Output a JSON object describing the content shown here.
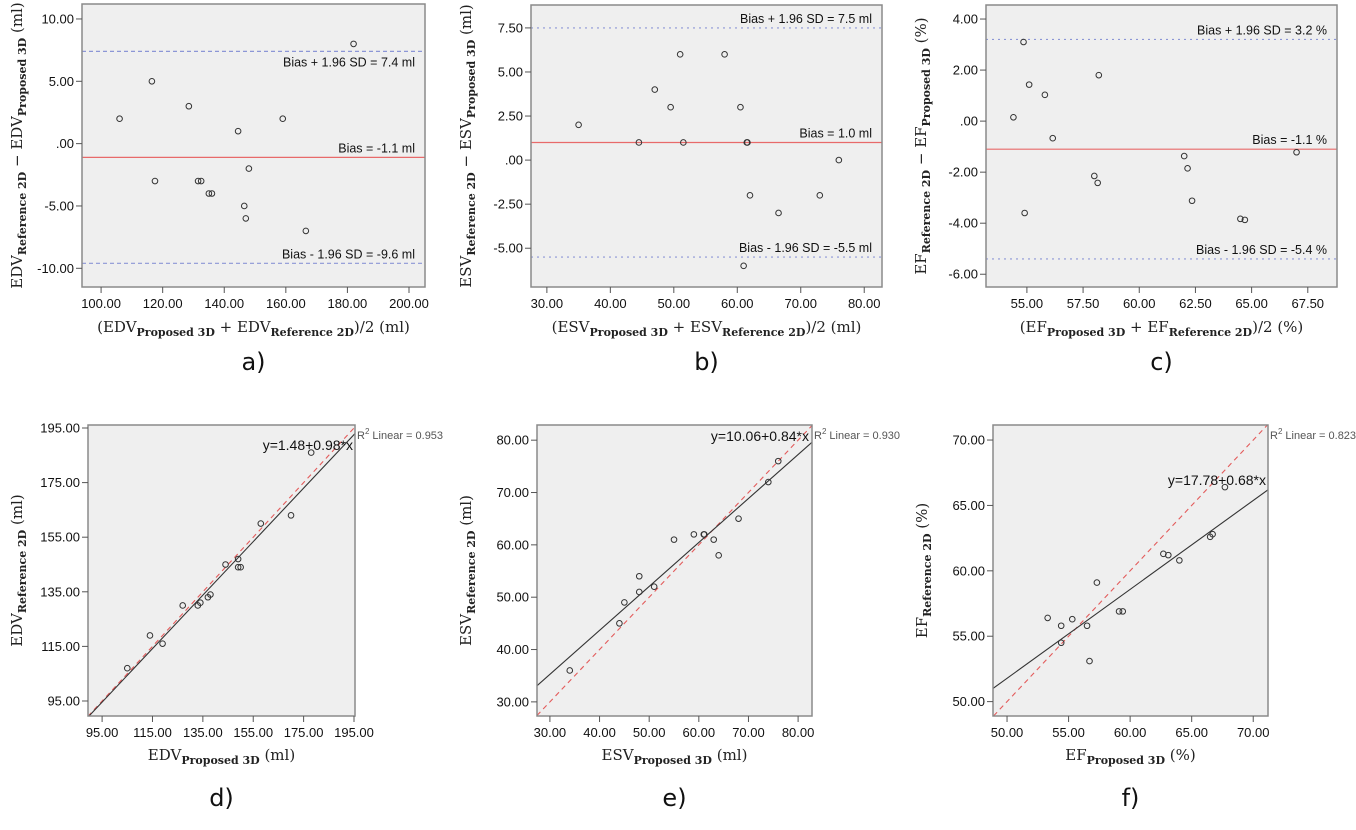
{
  "figure_title": "Bland-Altman and regression plots: Proposed 3D vs Reference 2D",
  "chart_data": [
    {
      "id": "a",
      "panel_label": "a)",
      "type": "scatter",
      "subtype": "bland-altman",
      "xlabel": {
        "prefix": "(EDV",
        "sub1": "Proposed 3D",
        "mid": " + EDV",
        "sub2": "Reference 2D",
        "suffix": ")/2 (ml)"
      },
      "ylabel": {
        "prefix": "EDV",
        "sub1": "Reference 2D",
        "mid": " − EDV",
        "sub2": "Proposed 3D",
        "suffix": " (ml)"
      },
      "xlim": [
        93.8,
        205.2
      ],
      "ylim": [
        -11.5,
        11.2
      ],
      "xticks": [
        100,
        120,
        140,
        160,
        180,
        200
      ],
      "xtick_labels": [
        "100.00",
        "120.00",
        "140.00",
        "160.00",
        "180.00",
        "200.00"
      ],
      "yticks": [
        10,
        5,
        0,
        -5,
        -10
      ],
      "ytick_labels": [
        "10.00",
        "5.00",
        ".00",
        "-5.00",
        "-10.00"
      ],
      "points": [
        [
          106,
          2
        ],
        [
          116.5,
          5
        ],
        [
          117.5,
          -3
        ],
        [
          128.5,
          3
        ],
        [
          131.5,
          -3
        ],
        [
          132.5,
          -3
        ],
        [
          135,
          -4
        ],
        [
          136,
          -4
        ],
        [
          144.5,
          1
        ],
        [
          146.5,
          -5
        ],
        [
          147,
          -6
        ],
        [
          148,
          -2
        ],
        [
          159,
          2
        ],
        [
          166.5,
          -7
        ],
        [
          182,
          8
        ]
      ],
      "hlines": [
        {
          "name": "upper-loa",
          "value": 7.4,
          "label": "Bias + 1.96 SD = 7.4 ml",
          "style": "dashed",
          "color": "#8c96d6",
          "label_pos": "below"
        },
        {
          "name": "bias",
          "value": -1.1,
          "label": "Bias = -1.1 ml",
          "style": "solid",
          "color": "#e86a6a",
          "label_pos": "above"
        },
        {
          "name": "lower-loa",
          "value": -9.6,
          "label": "Bias - 1.96 SD = -9.6 ml",
          "style": "dashed",
          "color": "#8c96d6",
          "label_pos": "above"
        }
      ]
    },
    {
      "id": "b",
      "panel_label": "b)",
      "type": "scatter",
      "subtype": "bland-altman",
      "xlabel": {
        "prefix": "(ESV",
        "sub1": "Proposed 3D",
        "mid": " + ESV",
        "sub2": "Reference 2D",
        "suffix": ")/2 (ml)"
      },
      "ylabel": {
        "prefix": "ESV",
        "sub1": "Reference 2D",
        "mid": " − ESV",
        "sub2": "Proposed 3D",
        "suffix": " (ml)"
      },
      "xlim": [
        27.5,
        82.8
      ],
      "ylim": [
        -7.2,
        8.8
      ],
      "xticks": [
        30,
        40,
        50,
        60,
        70,
        80
      ],
      "xtick_labels": [
        "30.00",
        "40.00",
        "50.00",
        "60.00",
        "70.00",
        "80.00"
      ],
      "yticks": [
        7.5,
        5,
        2.5,
        0,
        -2.5,
        -5
      ],
      "ytick_labels": [
        "7.50",
        "5.00",
        "2.50",
        ".00",
        "-2.50",
        "-5.00"
      ],
      "points": [
        [
          35,
          2
        ],
        [
          44.5,
          1
        ],
        [
          47,
          4
        ],
        [
          49.5,
          3
        ],
        [
          51,
          6
        ],
        [
          51.5,
          1
        ],
        [
          58,
          6
        ],
        [
          60.5,
          3
        ],
        [
          61.5,
          1
        ],
        [
          61.6,
          1
        ],
        [
          62,
          -2
        ],
        [
          66.5,
          -3
        ],
        [
          73,
          -2
        ],
        [
          76,
          0
        ],
        [
          61,
          -6
        ]
      ],
      "hlines": [
        {
          "name": "upper-loa",
          "value": 7.5,
          "label": "Bias + 1.96 SD = 7.5 ml",
          "style": "dotted",
          "color": "#8c96d6",
          "label_pos": "above"
        },
        {
          "name": "bias",
          "value": 1.0,
          "label": "Bias = 1.0 ml",
          "style": "solid",
          "color": "#e86a6a",
          "label_pos": "above"
        },
        {
          "name": "lower-loa",
          "value": -5.5,
          "label": "Bias - 1.96 SD = -5.5 ml",
          "style": "dotted",
          "color": "#8c96d6",
          "label_pos": "above"
        }
      ]
    },
    {
      "id": "c",
      "panel_label": "c)",
      "type": "scatter",
      "subtype": "bland-altman",
      "xlabel": {
        "prefix": "(EF",
        "sub1": "Proposed 3D",
        "mid": " + EF",
        "sub2": "Reference 2D",
        "suffix": ")/2 (%)"
      },
      "ylabel": {
        "prefix": "EF",
        "sub1": "Reference 2D",
        "mid": " − EF",
        "sub2": "Proposed 3D",
        "suffix": " (%)"
      },
      "xlim": [
        53.18,
        68.8
      ],
      "ylim": [
        -6.5,
        4.55
      ],
      "xticks": [
        55,
        57.5,
        60,
        62.5,
        65,
        67.5
      ],
      "xtick_labels": [
        "55.00",
        "57.50",
        "60.00",
        "62.50",
        "65.00",
        "67.50"
      ],
      "yticks": [
        4,
        2,
        0,
        -2,
        -4,
        -6
      ],
      "ytick_labels": [
        "4.00",
        "2.00",
        ".00",
        "-2.00",
        "-4.00",
        "-6.00"
      ],
      "points": [
        [
          54.4,
          0.15
        ],
        [
          54.85,
          3.1
        ],
        [
          54.9,
          -3.6
        ],
        [
          55.1,
          1.43
        ],
        [
          55.8,
          1.03
        ],
        [
          56.15,
          -0.67
        ],
        [
          58,
          -2.15
        ],
        [
          58.15,
          -2.42
        ],
        [
          58.2,
          1.8
        ],
        [
          62,
          -1.37
        ],
        [
          62.15,
          -1.85
        ],
        [
          62.35,
          -3.12
        ],
        [
          64.5,
          -3.83
        ],
        [
          64.7,
          -3.87
        ],
        [
          67,
          -1.22
        ]
      ],
      "hlines": [
        {
          "name": "upper-loa",
          "value": 3.2,
          "label": "Bias + 1.96 SD = 3.2 %",
          "style": "dotted",
          "color": "#8c96d6",
          "label_pos": "above"
        },
        {
          "name": "bias",
          "value": -1.1,
          "label": "Bias = -1.1 %",
          "style": "solid",
          "color": "#e86a6a",
          "label_pos": "above"
        },
        {
          "name": "lower-loa",
          "value": -5.4,
          "label": "Bias - 1.96 SD = -5.4 %",
          "style": "dotted",
          "color": "#8c96d6",
          "label_pos": "above"
        }
      ]
    },
    {
      "id": "d",
      "panel_label": "d)",
      "type": "scatter",
      "subtype": "regression",
      "xlabel": {
        "prefix": "EDV",
        "sub1": "Proposed 3D",
        "mid": "",
        "sub2": "",
        "suffix": " (ml)"
      },
      "ylabel": {
        "prefix": "EDV",
        "sub1": "Reference 2D",
        "mid": "",
        "sub2": "",
        "suffix": " (ml)"
      },
      "xlim": [
        89.4,
        195.4
      ],
      "ylim": [
        89.5,
        196.1
      ],
      "xticks": [
        95,
        115,
        135,
        155,
        175,
        195
      ],
      "xtick_labels": [
        "95.00",
        "115.00",
        "135.00",
        "155.00",
        "175.00",
        "195.00"
      ],
      "yticks": [
        195,
        175,
        155,
        135,
        115,
        95
      ],
      "ytick_labels": [
        "195.00",
        "175.00",
        "155.00",
        "135.00",
        "115.00",
        "95.00"
      ],
      "points": [
        [
          105,
          107
        ],
        [
          114,
          119
        ],
        [
          119,
          116
        ],
        [
          127,
          130
        ],
        [
          133,
          130
        ],
        [
          134,
          131
        ],
        [
          137,
          133
        ],
        [
          138,
          134
        ],
        [
          144,
          145
        ],
        [
          149,
          147
        ],
        [
          149,
          144
        ],
        [
          150,
          144
        ],
        [
          158,
          160
        ],
        [
          170,
          163
        ],
        [
          178,
          186
        ]
      ],
      "fit": {
        "intercept": 1.48,
        "slope": 0.98,
        "equation": "y=1.48+0.98*x",
        "r2_label": "Linear = 0.953",
        "r2_prefix": "R"
      },
      "identity_line": true
    },
    {
      "id": "e",
      "panel_label": "e)",
      "type": "scatter",
      "subtype": "regression",
      "xlabel": {
        "prefix": "ESV",
        "sub1": "Proposed 3D",
        "mid": "",
        "sub2": "",
        "suffix": " (ml)"
      },
      "ylabel": {
        "prefix": "ESV",
        "sub1": "Reference 2D",
        "mid": "",
        "sub2": "",
        "suffix": " (ml)"
      },
      "xlim": [
        27.4,
        82.8
      ],
      "ylim": [
        27.3,
        82.9
      ],
      "xticks": [
        30,
        40,
        50,
        60,
        70,
        80
      ],
      "xtick_labels": [
        "30.00",
        "40.00",
        "50.00",
        "60.00",
        "70.00",
        "80.00"
      ],
      "yticks": [
        80,
        70,
        60,
        50,
        40,
        30
      ],
      "ytick_labels": [
        "80.00",
        "70.00",
        "60.00",
        "50.00",
        "40.00",
        "30.00"
      ],
      "points": [
        [
          34,
          36
        ],
        [
          44,
          45
        ],
        [
          45,
          49
        ],
        [
          48,
          54
        ],
        [
          48,
          51
        ],
        [
          51,
          52
        ],
        [
          55,
          61
        ],
        [
          59,
          62
        ],
        [
          61,
          62
        ],
        [
          61.1,
          62
        ],
        [
          63,
          61
        ],
        [
          64,
          58
        ],
        [
          68,
          65
        ],
        [
          74,
          72
        ],
        [
          76,
          76
        ]
      ],
      "fit": {
        "intercept": 10.06,
        "slope": 0.84,
        "equation": "y=10.06+0.84*x",
        "r2_label": "Linear = 0.930",
        "r2_prefix": "R"
      },
      "identity_line": true
    },
    {
      "id": "f",
      "panel_label": "f)",
      "type": "scatter",
      "subtype": "regression",
      "xlabel": {
        "prefix": "EF",
        "sub1": "Proposed 3D",
        "mid": "",
        "sub2": "",
        "suffix": " (%)"
      },
      "ylabel": {
        "prefix": "EF",
        "sub1": "Reference 2D",
        "mid": "",
        "sub2": "",
        "suffix": " (%)"
      },
      "xlim": [
        48.86,
        71.2
      ],
      "ylim": [
        48.9,
        71.15
      ],
      "xticks": [
        50,
        55,
        60,
        65,
        70
      ],
      "xtick_labels": [
        "50.00",
        "55.00",
        "60.00",
        "65.00",
        "70.00"
      ],
      "yticks": [
        70,
        65,
        60,
        55,
        50
      ],
      "ytick_labels": [
        "70.00",
        "65.00",
        "60.00",
        "55.00",
        "50.00"
      ],
      "points": [
        [
          53.3,
          56.4
        ],
        [
          54.4,
          55.8
        ],
        [
          54.4,
          54.5
        ],
        [
          55.3,
          56.3
        ],
        [
          56.5,
          55.8
        ],
        [
          56.7,
          53.1
        ],
        [
          57.3,
          59.1
        ],
        [
          59.1,
          56.9
        ],
        [
          59.4,
          56.9
        ],
        [
          62.7,
          61.3
        ],
        [
          63.1,
          61.2
        ],
        [
          64,
          60.8
        ],
        [
          66.5,
          62.6
        ],
        [
          66.7,
          62.8
        ],
        [
          67.7,
          66.4
        ]
      ],
      "fit": {
        "intercept": 17.78,
        "slope": 0.68,
        "equation": "y=17.78+0.68*x",
        "r2_label": "Linear = 0.823",
        "r2_prefix": "R"
      },
      "identity_line": true
    }
  ],
  "colors": {
    "plot_bg": "#efefef",
    "frame": "#8a8a8a",
    "marker": "#333333",
    "bias_line": "#e86a6a",
    "loa_line": "#8c96d6",
    "fit_line": "#333333",
    "identity_line": "#e35b5b"
  }
}
